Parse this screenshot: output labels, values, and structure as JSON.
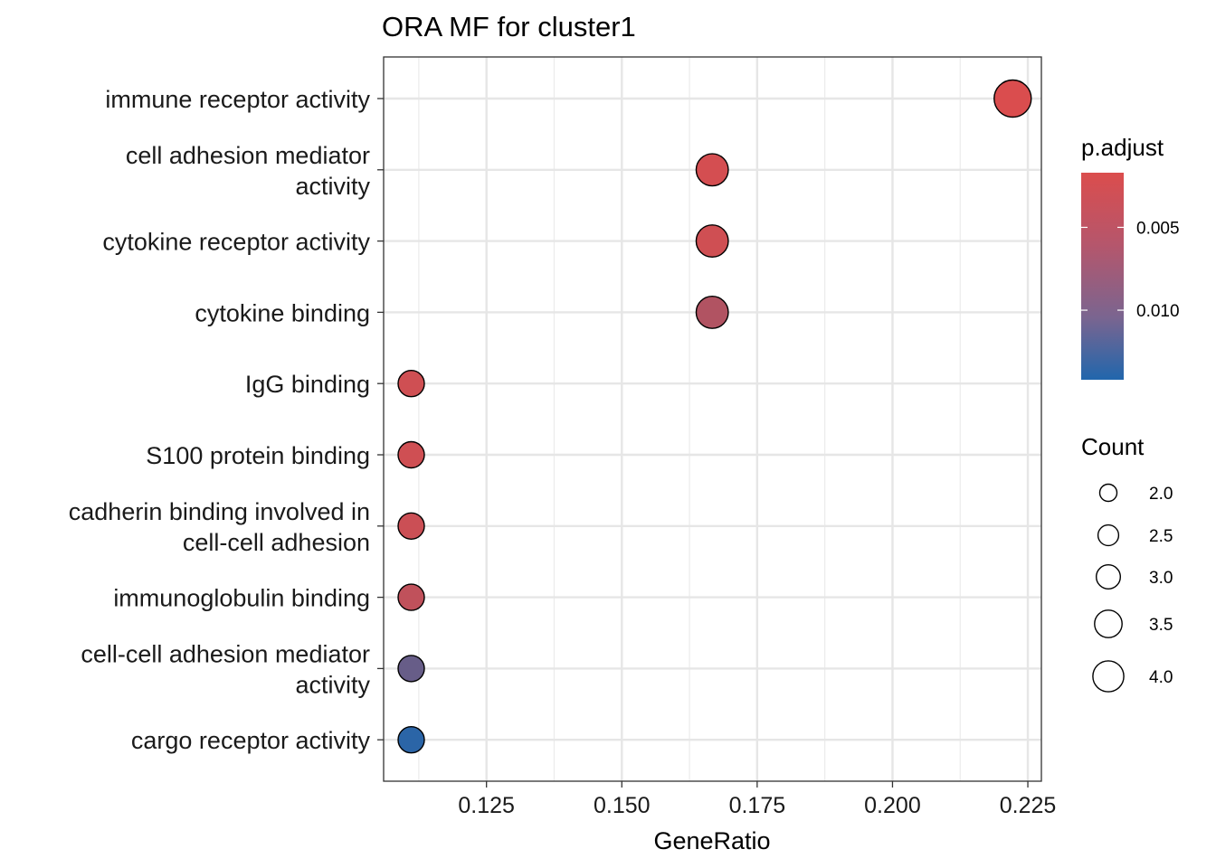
{
  "chart_data": {
    "type": "scatter",
    "title": "ORA MF for cluster1",
    "xlabel": "GeneRatio",
    "ylabel": "",
    "xlim": [
      0.106,
      0.2275
    ],
    "x_ticks": [
      "0.125",
      "0.150",
      "0.175",
      "0.200",
      "0.225"
    ],
    "x_tick_values": [
      0.125,
      0.15,
      0.175,
      0.2,
      0.225
    ],
    "grid": true,
    "categories": [
      [
        "immune receptor activity"
      ],
      [
        "cell adhesion mediator",
        "activity"
      ],
      [
        "cytokine receptor activity"
      ],
      [
        "cytokine binding"
      ],
      [
        "IgG binding"
      ],
      [
        "S100 protein binding"
      ],
      [
        "cadherin binding involved in",
        "cell-cell adhesion"
      ],
      [
        "immunoglobulin binding"
      ],
      [
        "cell-cell adhesion mediator",
        "activity"
      ],
      [
        "cargo receptor activity"
      ]
    ],
    "points": [
      {
        "gene_ratio": 0.2222,
        "count": 4,
        "p_adjust": 0.0018
      },
      {
        "gene_ratio": 0.1667,
        "count": 3,
        "p_adjust": 0.0022
      },
      {
        "gene_ratio": 0.1667,
        "count": 3,
        "p_adjust": 0.0025
      },
      {
        "gene_ratio": 0.1667,
        "count": 3,
        "p_adjust": 0.0045
      },
      {
        "gene_ratio": 0.1111,
        "count": 2,
        "p_adjust": 0.0025
      },
      {
        "gene_ratio": 0.1111,
        "count": 2,
        "p_adjust": 0.0025
      },
      {
        "gene_ratio": 0.1111,
        "count": 2,
        "p_adjust": 0.0028
      },
      {
        "gene_ratio": 0.1111,
        "count": 2,
        "p_adjust": 0.0035
      },
      {
        "gene_ratio": 0.1111,
        "count": 2,
        "p_adjust": 0.0095
      },
      {
        "gene_ratio": 0.1111,
        "count": 2,
        "p_adjust": 0.0135
      }
    ],
    "legend": {
      "placement": "right",
      "color_title": "p.adjust",
      "color_range": [
        0.0017,
        0.0142
      ],
      "color_low_hex": "#DB4D4D",
      "color_high_hex": "#2166AC",
      "color_ticks": [
        "0.005",
        "0.010"
      ],
      "color_tick_values": [
        0.005,
        0.01
      ],
      "size_title": "Count",
      "size_items": [
        "2.0",
        "2.5",
        "3.0",
        "3.5",
        "4.0"
      ],
      "size_values": [
        2.0,
        2.5,
        3.0,
        3.5,
        4.0
      ]
    }
  }
}
